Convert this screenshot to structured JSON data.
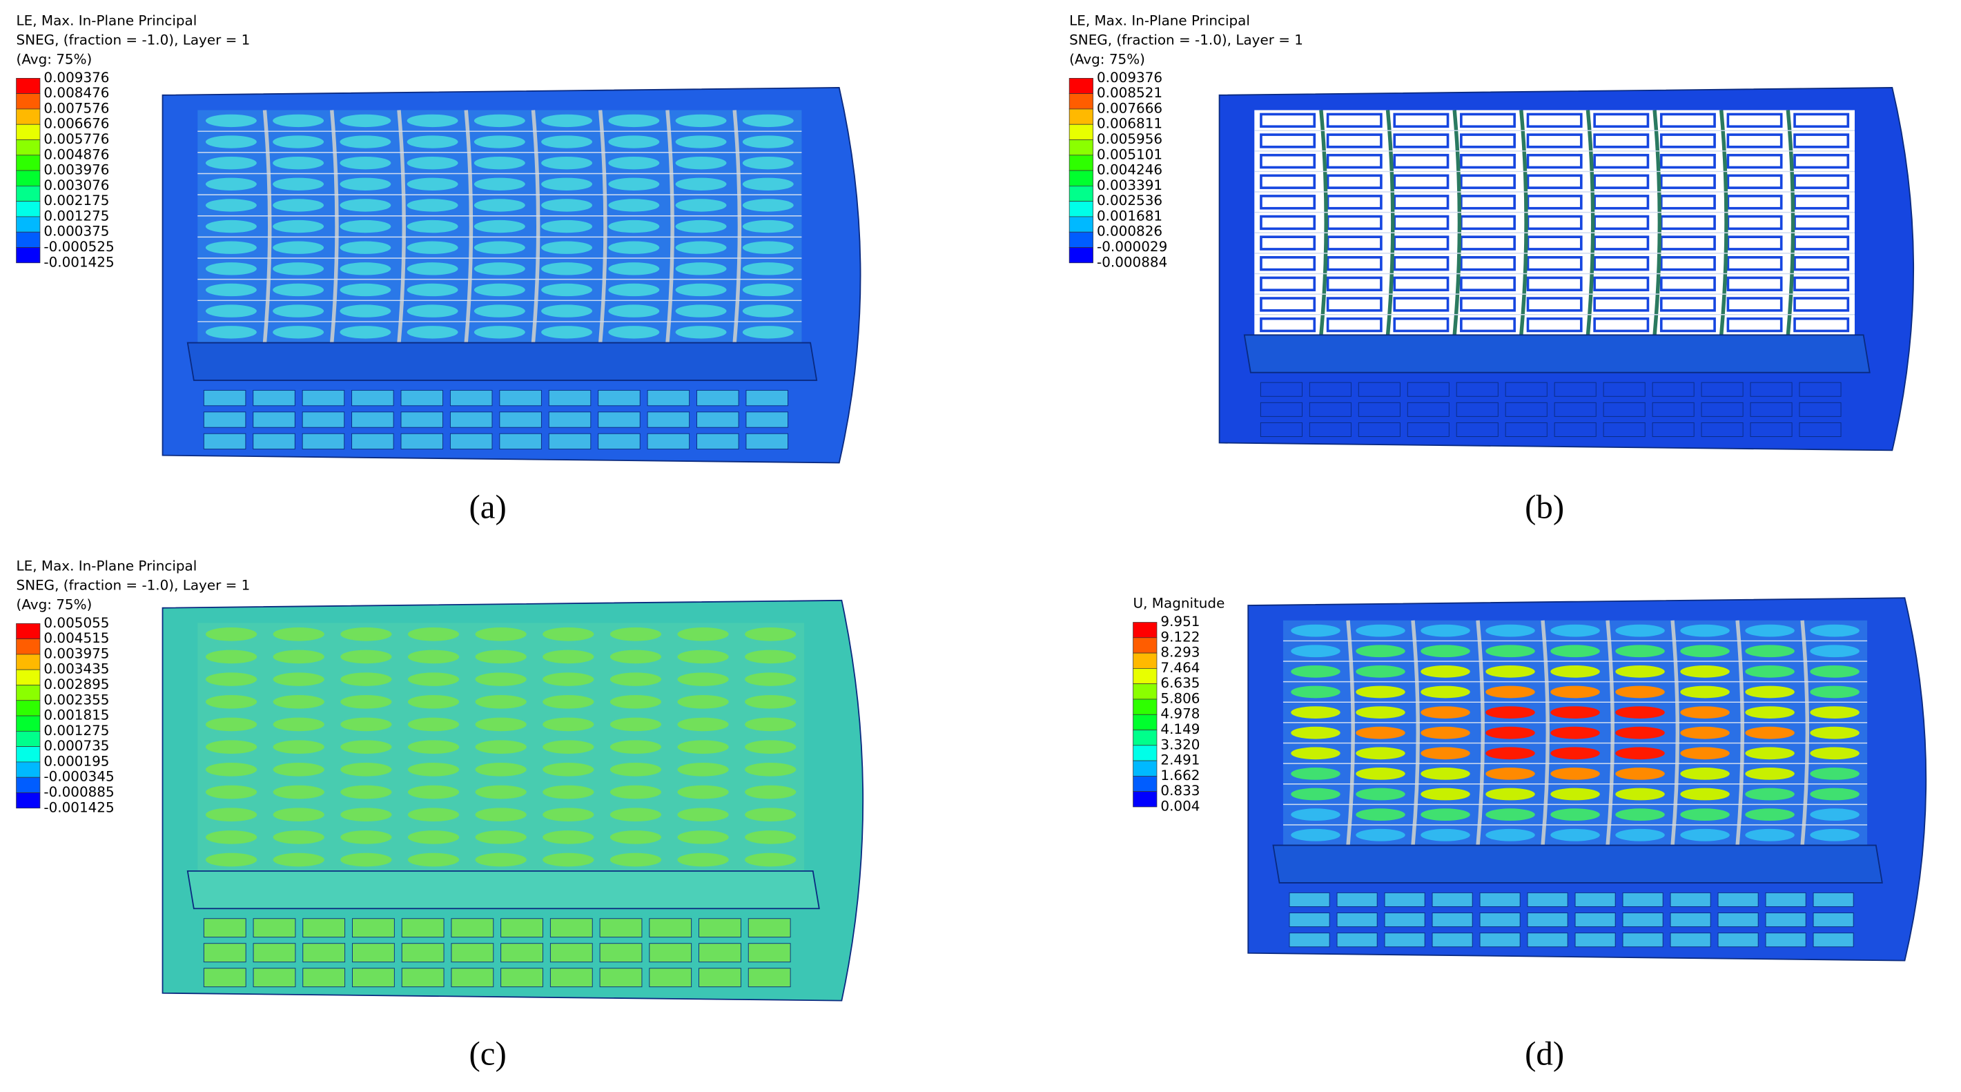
{
  "panels": [
    {
      "legend": {
        "title_lines": [
          "LE, Max. In-Plane Principal",
          "SNEG, (fraction = -1.0), Layer = 1",
          "(Avg: 75%)"
        ],
        "values": [
          "0.009376",
          "0.008476",
          "0.007576",
          "0.006676",
          "0.005776",
          "0.004876",
          "0.003976",
          "0.003076",
          "0.002175",
          "0.001275",
          "0.000375",
          "-0.000525",
          "-0.001425"
        ]
      },
      "caption": "(a)"
    },
    {
      "legend": {
        "title_lines": [
          "LE, Max. In-Plane Principal",
          "SNEG, (fraction = -1.0), Layer = 1",
          "(Avg: 75%)"
        ],
        "values": [
          "0.009376",
          "0.008521",
          "0.007666",
          "0.006811",
          "0.005956",
          "0.005101",
          "0.004246",
          "0.003391",
          "0.002536",
          "0.001681",
          "0.000826",
          "-0.000029",
          "-0.000884"
        ]
      },
      "caption": "(b)"
    },
    {
      "legend": {
        "title_lines": [
          "LE, Max. In-Plane Principal",
          "SNEG, (fraction = -1.0), Layer = 1",
          "(Avg: 75%)"
        ],
        "values": [
          "0.005055",
          "0.004515",
          "0.003975",
          "0.003435",
          "0.002895",
          "0.002355",
          "0.001815",
          "0.001275",
          "0.000735",
          "0.000195",
          "-0.000345",
          "-0.000885",
          "-0.001425"
        ]
      },
      "caption": "(c)"
    },
    {
      "legend": {
        "title_lines": [
          "U, Magnitude"
        ],
        "values": [
          "9.951",
          "9.122",
          "8.293",
          "7.464",
          "6.635",
          "5.806",
          "4.978",
          "4.149",
          "3.320",
          "2.491",
          "1.662",
          "0.833",
          "0.004"
        ]
      },
      "caption": "(d)"
    }
  ]
}
